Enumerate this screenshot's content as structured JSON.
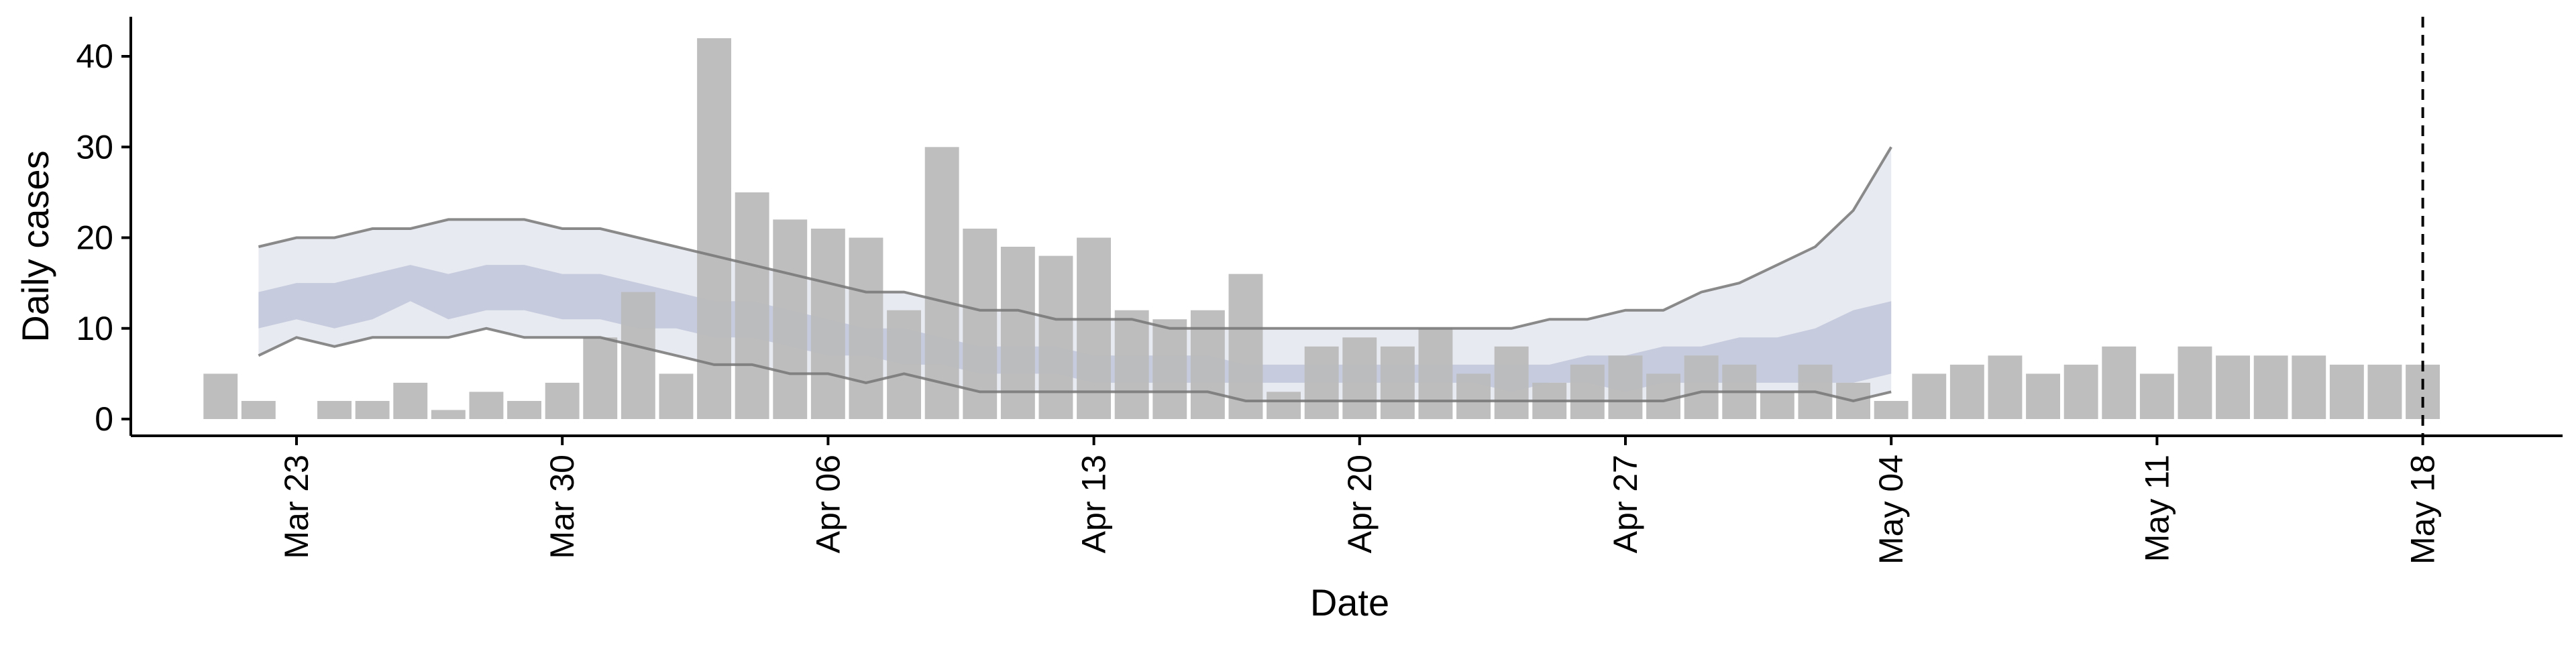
{
  "chart_data": {
    "type": "bar",
    "xlabel": "Date",
    "ylabel": "Daily cases",
    "ylim": [
      0,
      44
    ],
    "yticks": [
      0,
      10,
      20,
      30,
      40
    ],
    "x_tick_labels": [
      "Mar 23",
      "Mar 30",
      "Apr 06",
      "Apr 13",
      "Apr 20",
      "Apr 27",
      "May 04",
      "May 11",
      "May 18"
    ],
    "x_tick_dates": [
      "2020-03-23",
      "2020-03-30",
      "2020-04-06",
      "2020-04-13",
      "2020-04-20",
      "2020-04-27",
      "2020-05-04",
      "2020-05-11",
      "2020-05-18"
    ],
    "bars": {
      "dates": [
        "2020-03-21",
        "2020-03-22",
        "2020-03-23",
        "2020-03-24",
        "2020-03-25",
        "2020-03-26",
        "2020-03-27",
        "2020-03-28",
        "2020-03-29",
        "2020-03-30",
        "2020-03-31",
        "2020-04-01",
        "2020-04-02",
        "2020-04-03",
        "2020-04-04",
        "2020-04-05",
        "2020-04-06",
        "2020-04-07",
        "2020-04-08",
        "2020-04-09",
        "2020-04-10",
        "2020-04-11",
        "2020-04-12",
        "2020-04-13",
        "2020-04-14",
        "2020-04-15",
        "2020-04-16",
        "2020-04-17",
        "2020-04-18",
        "2020-04-19",
        "2020-04-20",
        "2020-04-21",
        "2020-04-22",
        "2020-04-23",
        "2020-04-24",
        "2020-04-25",
        "2020-04-26",
        "2020-04-27",
        "2020-04-28",
        "2020-04-29",
        "2020-04-30",
        "2020-05-01",
        "2020-05-02",
        "2020-05-03",
        "2020-05-04",
        "2020-05-05",
        "2020-05-06",
        "2020-05-07",
        "2020-05-08",
        "2020-05-09",
        "2020-05-10",
        "2020-05-11",
        "2020-05-12",
        "2020-05-13",
        "2020-05-14",
        "2020-05-15",
        "2020-05-16",
        "2020-05-17",
        "2020-05-18"
      ],
      "values": [
        5,
        2,
        0,
        2,
        2,
        4,
        1,
        3,
        2,
        4,
        9,
        14,
        5,
        42,
        25,
        22,
        21,
        20,
        12,
        30,
        21,
        19,
        18,
        20,
        12,
        11,
        12,
        16,
        3,
        8,
        9,
        8,
        10,
        5,
        8,
        4,
        6,
        7,
        5,
        7,
        6,
        3,
        6,
        4,
        2,
        5,
        6,
        7,
        5,
        6,
        8,
        5,
        8,
        7,
        7,
        7,
        6,
        6,
        6
      ],
      "color": "#bbbbbb"
    },
    "band_dates": [
      "2020-03-22",
      "2020-03-23",
      "2020-03-24",
      "2020-03-25",
      "2020-03-26",
      "2020-03-27",
      "2020-03-28",
      "2020-03-29",
      "2020-03-30",
      "2020-03-31",
      "2020-04-01",
      "2020-04-02",
      "2020-04-03",
      "2020-04-04",
      "2020-04-05",
      "2020-04-06",
      "2020-04-07",
      "2020-04-08",
      "2020-04-09",
      "2020-04-10",
      "2020-04-11",
      "2020-04-12",
      "2020-04-13",
      "2020-04-14",
      "2020-04-15",
      "2020-04-16",
      "2020-04-17",
      "2020-04-18",
      "2020-04-19",
      "2020-04-20",
      "2020-04-21",
      "2020-04-22",
      "2020-04-23",
      "2020-04-24",
      "2020-04-25",
      "2020-04-26",
      "2020-04-27",
      "2020-04-28",
      "2020-04-29",
      "2020-04-30",
      "2020-05-01",
      "2020-05-02",
      "2020-05-03",
      "2020-05-04"
    ],
    "outer_band": {
      "upper": [
        19,
        20,
        20,
        21,
        21,
        22,
        22,
        22,
        21,
        21,
        20,
        19,
        18,
        17,
        16,
        15,
        14,
        14,
        13,
        12,
        12,
        11,
        11,
        11,
        10,
        10,
        10,
        10,
        10,
        10,
        10,
        10,
        10,
        10,
        11,
        11,
        12,
        12,
        14,
        15,
        17,
        19,
        23,
        30
      ],
      "lower": [
        7,
        9,
        8,
        9,
        9,
        9,
        10,
        9,
        9,
        9,
        8,
        7,
        6,
        6,
        5,
        5,
        4,
        5,
        4,
        3,
        3,
        3,
        3,
        3,
        3,
        3,
        2,
        2,
        2,
        2,
        2,
        2,
        2,
        2,
        2,
        2,
        2,
        2,
        3,
        3,
        3,
        3,
        2,
        3
      ],
      "fill": "#e8eaf1"
    },
    "inner_band": {
      "upper": [
        14,
        15,
        15,
        16,
        17,
        16,
        17,
        17,
        16,
        16,
        15,
        14,
        13,
        13,
        12,
        11,
        10,
        10,
        9,
        8,
        8,
        8,
        7,
        7,
        7,
        7,
        6,
        6,
        6,
        6,
        6,
        6,
        6,
        6,
        6,
        7,
        7,
        8,
        8,
        9,
        9,
        10,
        12,
        13
      ],
      "lower": [
        10,
        11,
        10,
        11,
        13,
        11,
        12,
        12,
        11,
        11,
        10,
        10,
        9,
        9,
        8,
        7,
        7,
        6,
        6,
        5,
        5,
        5,
        4,
        4,
        4,
        4,
        4,
        4,
        4,
        4,
        4,
        4,
        4,
        3,
        4,
        4,
        3,
        4,
        4,
        4,
        4,
        4,
        4,
        5
      ],
      "fill": "#c6cbdd"
    },
    "outer_band_lines_color": "#777777",
    "vline_date": "2020-05-18"
  }
}
